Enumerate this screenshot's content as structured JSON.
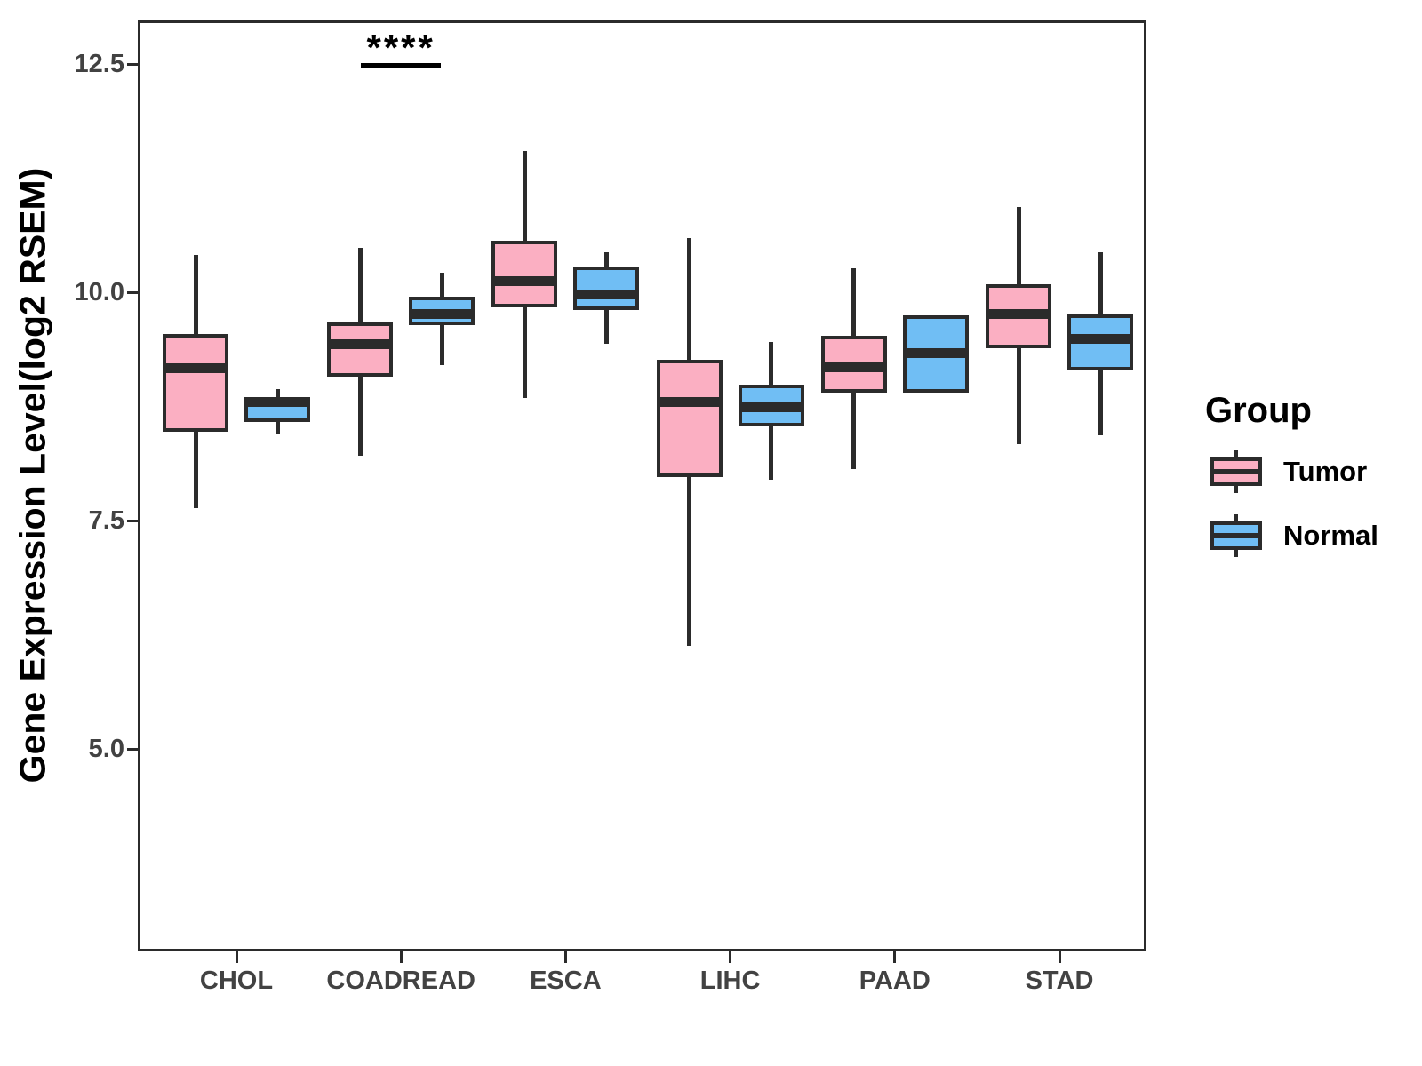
{
  "figure": {
    "background": "#FFFFFF",
    "line_color": "#2B2B2B",
    "tick_text_color": "#424242"
  },
  "axis": {
    "y_label": "Gene Expression Level(log2 RSEM)",
    "y_ticks": [
      {
        "label": "12.5",
        "value": 12.5
      },
      {
        "label": "10.0",
        "value": 10.0
      },
      {
        "label": "7.5",
        "value": 7.5
      },
      {
        "label": "5.0",
        "value": 5.0
      }
    ]
  },
  "legend": {
    "title": "Group",
    "items": [
      {
        "label": "Tumor",
        "color": "#FBAFC2"
      },
      {
        "label": "Normal",
        "color": "#70BEF4"
      }
    ]
  },
  "annotation": {
    "text": "****",
    "category": "COADREAD"
  },
  "chart_data": {
    "type": "boxplot",
    "title": "",
    "xlabel": "",
    "ylabel": "Gene Expression Level(log2 RSEM)",
    "ylim": [
      2.8,
      13.0
    ],
    "grid": false,
    "legend_position": "right",
    "categories": [
      "CHOL",
      "COADREAD",
      "ESCA",
      "LIHC",
      "PAAD",
      "STAD"
    ],
    "series": [
      {
        "name": "Tumor",
        "color": "#FBAFC2",
        "boxes": [
          {
            "whisker_low": 7.64,
            "q1": 8.47,
            "median": 9.17,
            "q3": 9.54,
            "whisker_high": 10.41
          },
          {
            "whisker_low": 8.21,
            "q1": 9.08,
            "median": 9.43,
            "q3": 9.67,
            "whisker_high": 10.49
          },
          {
            "whisker_low": 8.84,
            "q1": 9.83,
            "median": 10.12,
            "q3": 10.56,
            "whisker_high": 11.55
          },
          {
            "whisker_low": 6.13,
            "q1": 7.98,
            "median": 8.8,
            "q3": 9.26,
            "whisker_high": 10.59
          },
          {
            "whisker_low": 8.06,
            "q1": 8.9,
            "median": 9.18,
            "q3": 9.52,
            "whisker_high": 10.26
          },
          {
            "whisker_low": 8.34,
            "q1": 9.39,
            "median": 9.76,
            "q3": 10.09,
            "whisker_high": 10.93
          }
        ]
      },
      {
        "name": "Normal",
        "color": "#70BEF4",
        "boxes": [
          {
            "whisker_low": 8.45,
            "q1": 8.58,
            "median": 8.8,
            "q3": 8.84,
            "whisker_high": 8.94
          },
          {
            "whisker_low": 9.2,
            "q1": 9.64,
            "median": 9.76,
            "q3": 9.95,
            "whisker_high": 10.21
          },
          {
            "whisker_low": 9.44,
            "q1": 9.81,
            "median": 9.98,
            "q3": 10.28,
            "whisker_high": 10.44
          },
          {
            "whisker_low": 7.95,
            "q1": 8.53,
            "median": 8.74,
            "q3": 8.99,
            "whisker_high": 9.46
          },
          {
            "whisker_low": 8.9,
            "q1": 8.9,
            "median": 9.33,
            "q3": 9.75,
            "whisker_high": 9.75
          },
          {
            "whisker_low": 8.43,
            "q1": 9.14,
            "median": 9.49,
            "q3": 9.76,
            "whisker_high": 10.44
          }
        ]
      }
    ],
    "significance": {
      "category": "COADREAD",
      "label": "****"
    }
  }
}
